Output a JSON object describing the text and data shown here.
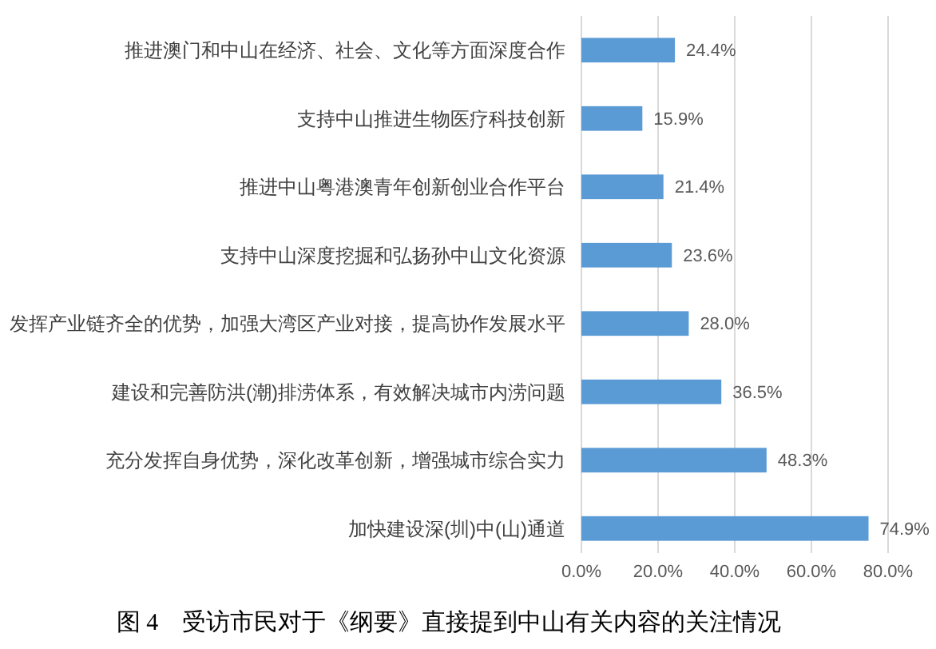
{
  "chart_data": {
    "type": "bar",
    "orientation": "horizontal",
    "title": "图 4　受访市民对于《纲要》直接提到中山有关内容的关注情况",
    "categories": [
      "推进澳门和中山在经济、社会、文化等方面深度合作",
      "支持中山推进生物医疗科技创新",
      "推进中山粤港澳青年创新创业合作平台",
      "支持中山深度挖掘和弘扬孙中山文化资源",
      "发挥产业链齐全的优势，加强大湾区产业对接，提高协作发展水平",
      "建设和完善防洪(潮)排涝体系，有效解决城市内涝问题",
      "充分发挥自身优势，深化改革创新，增强城市综合实力",
      "加快建设深(圳)中(山)通道"
    ],
    "values": [
      24.4,
      15.9,
      21.4,
      23.6,
      28.0,
      36.5,
      48.3,
      74.9
    ],
    "value_labels": [
      "24.4%",
      "15.9%",
      "21.4%",
      "23.6%",
      "28.0%",
      "36.5%",
      "48.3%",
      "74.9%"
    ],
    "color": "#5b9bd5",
    "xlim": [
      0,
      80
    ],
    "xticks": [
      {
        "value": 0,
        "label": "0.0%"
      },
      {
        "value": 20,
        "label": "20.0%"
      },
      {
        "value": 40,
        "label": "40.0%"
      },
      {
        "value": 60,
        "label": "60.0%"
      },
      {
        "value": 80,
        "label": "80.0%"
      }
    ],
    "grid": "x"
  }
}
